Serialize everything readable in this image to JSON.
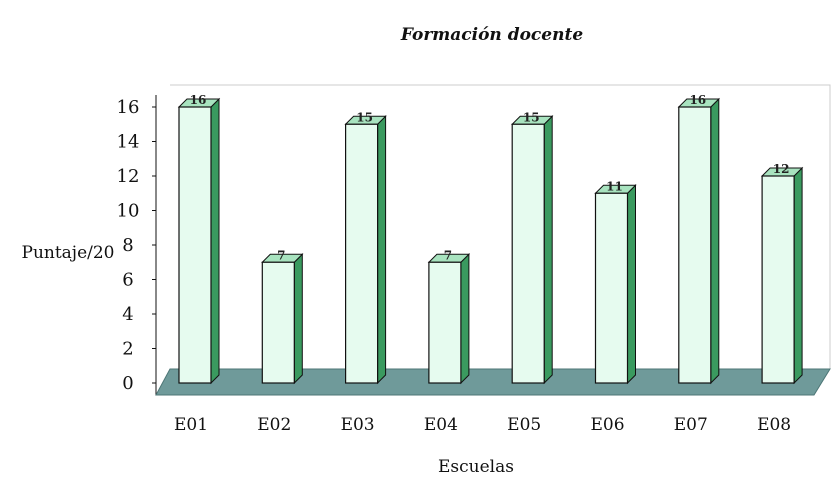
{
  "chart_data": {
    "type": "bar",
    "title": "Formación docente",
    "xlabel": "Escuelas",
    "ylabel": "Puntaje/20",
    "categories": [
      "E01",
      "E02",
      "E03",
      "E04",
      "E05",
      "E06",
      "E07",
      "E08"
    ],
    "values": [
      16,
      7,
      15,
      7,
      15,
      11,
      16,
      12
    ],
    "data_labels": [
      "16",
      "7",
      "15",
      "7",
      "15",
      "11",
      "16",
      "12"
    ],
    "ylim": [
      0,
      16
    ],
    "yticks": [
      "0",
      "2",
      "4",
      "6",
      "8",
      "10",
      "12",
      "14",
      "16"
    ],
    "grid": false,
    "legend": "none",
    "colors": {
      "bar_face": "#e6fbef",
      "bar_side": "#3a9a5f",
      "bar_top": "#a8e3bf",
      "floor": "#6f9a9a",
      "outline": "#111111"
    }
  }
}
